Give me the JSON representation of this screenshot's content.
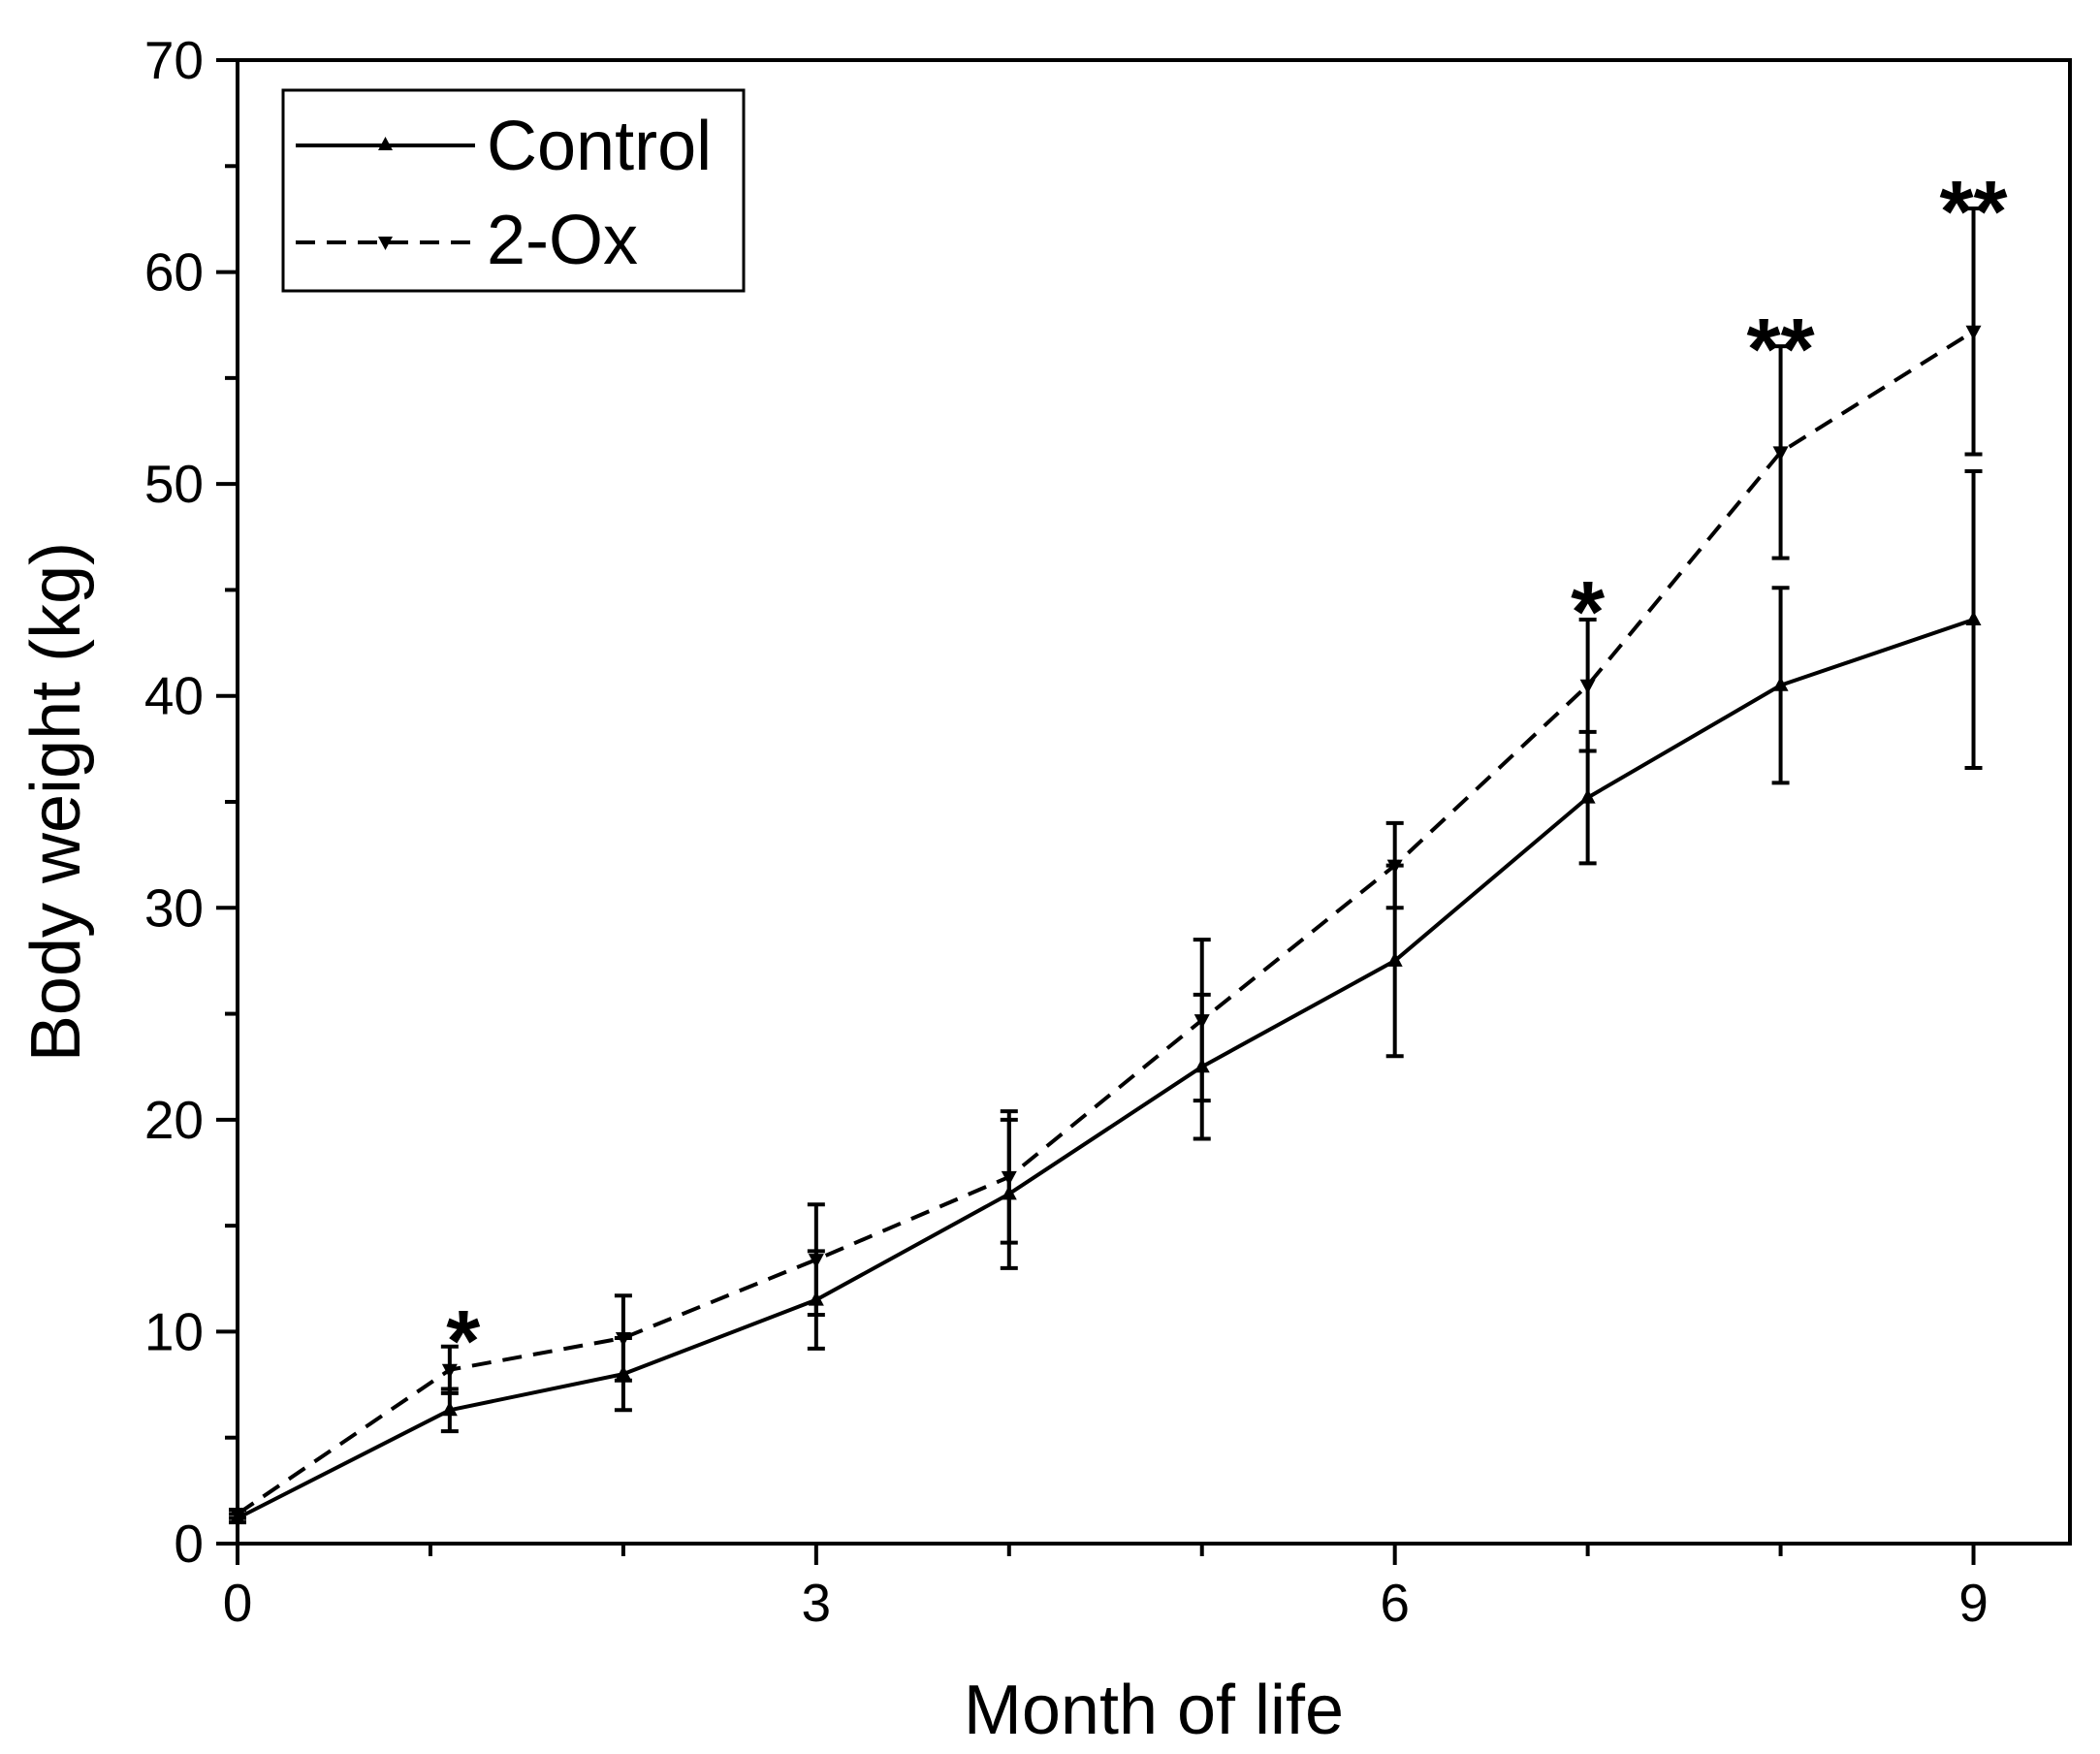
{
  "chart_data": {
    "type": "line",
    "title": "",
    "xlabel": "Month of life",
    "ylabel": "Body weight (kg)",
    "xlim": [
      0,
      9.5
    ],
    "ylim": [
      0,
      70
    ],
    "xticks": [
      0,
      3,
      6,
      9
    ],
    "yticks": [
      0,
      10,
      20,
      30,
      40,
      50,
      60,
      70
    ],
    "x_minor_ticks": [
      1,
      2,
      4,
      5,
      7,
      8
    ],
    "y_minor_ticks": [
      5,
      15,
      25,
      35,
      45,
      55,
      65
    ],
    "x_tick_labels": [
      "0",
      "3",
      "6",
      "9"
    ],
    "y_tick_labels": [
      "0",
      "10",
      "20",
      "30",
      "40",
      "50",
      "60",
      "70"
    ],
    "legend_position": "top-left",
    "series": [
      {
        "name": "Control",
        "line_style": "solid",
        "marker": "triangle-up",
        "x": [
          0,
          1.1,
          2,
          3,
          4,
          5,
          6,
          7,
          8,
          9
        ],
        "y": [
          1.2,
          6.3,
          8.0,
          11.5,
          16.5,
          22.5,
          27.5,
          35.2,
          40.5,
          43.6
        ],
        "error": [
          0.2,
          1.0,
          1.7,
          2.3,
          3.5,
          3.4,
          4.5,
          3.1,
          4.6,
          7.0
        ]
      },
      {
        "name": "2-Ox",
        "line_style": "dashed",
        "marker": "triangle-down",
        "x": [
          0,
          1.1,
          2,
          3,
          4,
          5,
          6,
          7,
          8,
          9
        ],
        "y": [
          1.4,
          8.2,
          9.7,
          13.4,
          17.3,
          24.7,
          32.0,
          40.5,
          51.5,
          57.2
        ],
        "error": [
          0.2,
          1.1,
          2.0,
          2.6,
          3.1,
          3.8,
          2.0,
          3.1,
          5.0,
          5.8
        ]
      }
    ],
    "annotations": [
      {
        "text": "*",
        "x": 1.17,
        "y": 10.2
      },
      {
        "text": "*",
        "x": 7.0,
        "y": 44.6
      },
      {
        "text": "**",
        "x": 8.0,
        "y": 57.0
      },
      {
        "text": "**",
        "x": 9.0,
        "y": 63.5
      }
    ]
  }
}
